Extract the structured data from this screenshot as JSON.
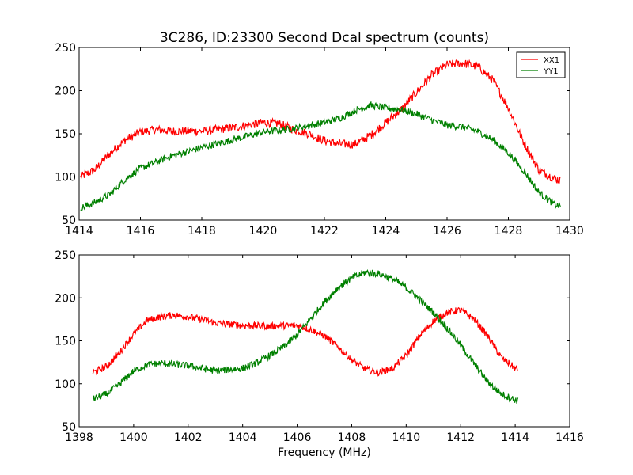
{
  "figure": {
    "title": "3C286, ID:23300 Second Dcal spectrum (counts)"
  },
  "colors": {
    "xx1": "#ff0000",
    "yy1": "#008000",
    "axes": "#000000",
    "background": "#ffffff"
  },
  "chart_data": [
    {
      "type": "line",
      "title": "3C286, ID:23300 Second Dcal spectrum (counts)",
      "xlabel": "",
      "ylabel": "",
      "xlim": [
        1414,
        1430
      ],
      "ylim": [
        50,
        250
      ],
      "xticks": [
        "1414",
        "1416",
        "1418",
        "1420",
        "1422",
        "1424",
        "1426",
        "1428",
        "1430"
      ],
      "yticks": [
        "50",
        "100",
        "150",
        "200",
        "250"
      ],
      "grid": false,
      "legend": "top-right",
      "x_range": [
        1414.05,
        1429.7
      ],
      "series": [
        {
          "name": "XX1",
          "color": "#ff0000",
          "noise": 5,
          "points": [
            [
              1414.05,
              100
            ],
            [
              1414.5,
              108
            ],
            [
              1415.0,
              127
            ],
            [
              1415.5,
              143
            ],
            [
              1416.0,
              152
            ],
            [
              1416.5,
              155
            ],
            [
              1417.0,
              153
            ],
            [
              1418.0,
              153
            ],
            [
              1419.0,
              157
            ],
            [
              1420.0,
              163
            ],
            [
              1420.5,
              162
            ],
            [
              1421.0,
              155
            ],
            [
              1421.5,
              150
            ],
            [
              1422.0,
              142
            ],
            [
              1422.5,
              138
            ],
            [
              1423.0,
              138
            ],
            [
              1423.5,
              148
            ],
            [
              1424.0,
              163
            ],
            [
              1424.5,
              178
            ],
            [
              1425.0,
              198
            ],
            [
              1425.5,
              218
            ],
            [
              1426.0,
              230
            ],
            [
              1426.5,
              232
            ],
            [
              1427.0,
              228
            ],
            [
              1427.5,
              212
            ],
            [
              1428.0,
              180
            ],
            [
              1428.5,
              140
            ],
            [
              1429.0,
              108
            ],
            [
              1429.5,
              98
            ],
            [
              1429.7,
              96
            ]
          ]
        },
        {
          "name": "YY1",
          "color": "#008000",
          "noise": 4,
          "points": [
            [
              1414.05,
              64
            ],
            [
              1414.5,
              70
            ],
            [
              1415.0,
              80
            ],
            [
              1415.5,
              97
            ],
            [
              1416.0,
              110
            ],
            [
              1416.5,
              117
            ],
            [
              1417.0,
              124
            ],
            [
              1418.0,
              134
            ],
            [
              1419.0,
              143
            ],
            [
              1420.0,
              152
            ],
            [
              1421.0,
              156
            ],
            [
              1422.0,
              163
            ],
            [
              1422.5,
              168
            ],
            [
              1423.0,
              177
            ],
            [
              1423.5,
              183
            ],
            [
              1424.0,
              180
            ],
            [
              1424.5,
              178
            ],
            [
              1425.0,
              173
            ],
            [
              1425.5,
              166
            ],
            [
              1426.0,
              160
            ],
            [
              1426.5,
              158
            ],
            [
              1427.0,
              153
            ],
            [
              1427.5,
              143
            ],
            [
              1428.0,
              128
            ],
            [
              1428.5,
              107
            ],
            [
              1429.0,
              82
            ],
            [
              1429.5,
              68
            ],
            [
              1429.7,
              66
            ]
          ]
        }
      ]
    },
    {
      "type": "line",
      "title": "",
      "xlabel": "Frequency (MHz)",
      "ylabel": "",
      "xlim": [
        1398,
        1416
      ],
      "ylim": [
        50,
        250
      ],
      "xticks": [
        "1398",
        "1400",
        "1402",
        "1404",
        "1406",
        "1408",
        "1410",
        "1412",
        "1414",
        "1416"
      ],
      "yticks": [
        "50",
        "100",
        "150",
        "200",
        "250"
      ],
      "grid": false,
      "legend": "none",
      "x_range": [
        1398.5,
        1414.1
      ],
      "series": [
        {
          "name": "XX1",
          "color": "#ff0000",
          "noise": 4,
          "points": [
            [
              1398.5,
              113
            ],
            [
              1399.0,
              120
            ],
            [
              1399.5,
              137
            ],
            [
              1400.0,
              158
            ],
            [
              1400.5,
              174
            ],
            [
              1401.0,
              178
            ],
            [
              1401.5,
              180
            ],
            [
              1402.0,
              178
            ],
            [
              1402.5,
              175
            ],
            [
              1403.0,
              171
            ],
            [
              1404.0,
              168
            ],
            [
              1405.0,
              167
            ],
            [
              1406.0,
              168
            ],
            [
              1406.5,
              163
            ],
            [
              1407.0,
              156
            ],
            [
              1407.5,
              143
            ],
            [
              1408.0,
              128
            ],
            [
              1408.5,
              117
            ],
            [
              1409.0,
              113
            ],
            [
              1409.5,
              118
            ],
            [
              1410.0,
              133
            ],
            [
              1410.5,
              156
            ],
            [
              1411.0,
              173
            ],
            [
              1411.5,
              183
            ],
            [
              1412.0,
              186
            ],
            [
              1412.5,
              175
            ],
            [
              1413.0,
              155
            ],
            [
              1413.5,
              130
            ],
            [
              1414.1,
              116
            ]
          ]
        },
        {
          "name": "YY1",
          "color": "#008000",
          "noise": 4,
          "points": [
            [
              1398.5,
              82
            ],
            [
              1399.0,
              88
            ],
            [
              1399.5,
              100
            ],
            [
              1400.0,
              115
            ],
            [
              1400.5,
              122
            ],
            [
              1401.0,
              124
            ],
            [
              1402.0,
              121
            ],
            [
              1403.0,
              115
            ],
            [
              1404.0,
              118
            ],
            [
              1404.5,
              124
            ],
            [
              1405.0,
              133
            ],
            [
              1405.5,
              143
            ],
            [
              1406.0,
              157
            ],
            [
              1406.5,
              176
            ],
            [
              1407.0,
              195
            ],
            [
              1407.5,
              212
            ],
            [
              1408.0,
              223
            ],
            [
              1408.5,
              230
            ],
            [
              1409.0,
              228
            ],
            [
              1409.5,
              222
            ],
            [
              1410.0,
              212
            ],
            [
              1410.5,
              198
            ],
            [
              1411.0,
              183
            ],
            [
              1411.5,
              165
            ],
            [
              1412.0,
              145
            ],
            [
              1412.5,
              123
            ],
            [
              1413.0,
              102
            ],
            [
              1413.5,
              88
            ],
            [
              1414.1,
              80
            ]
          ]
        }
      ]
    }
  ]
}
